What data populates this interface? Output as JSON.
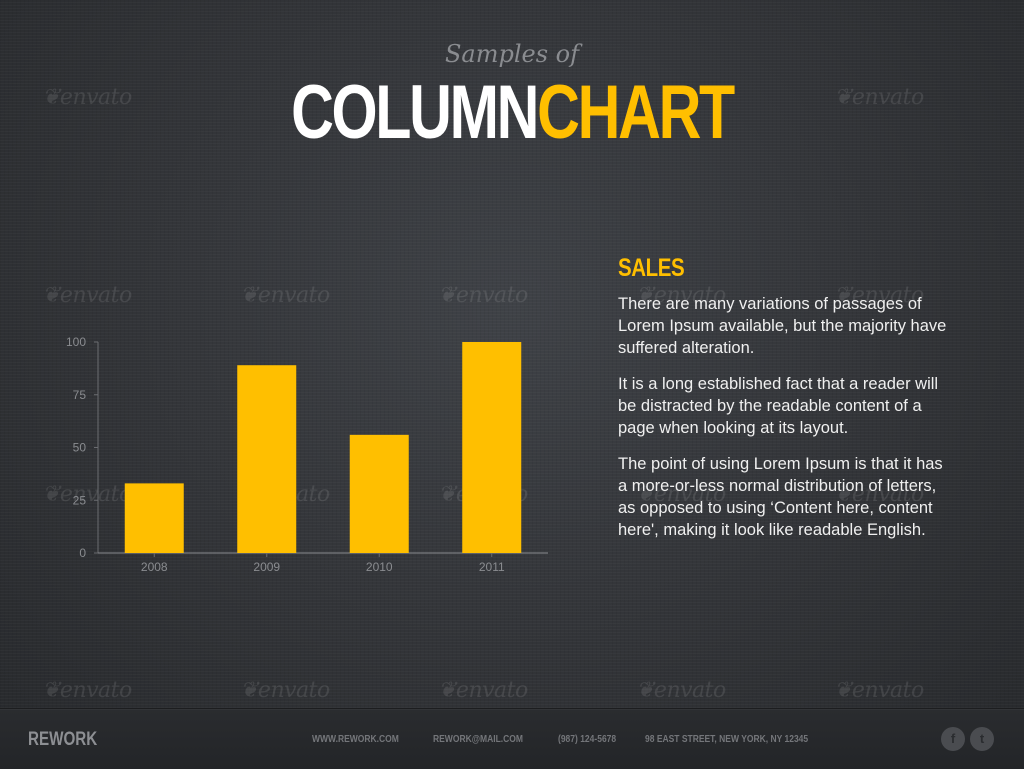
{
  "header": {
    "subtitle": "Samples of",
    "title_part1": "COLUMN",
    "title_part2": "CHART"
  },
  "watermark": {
    "text": "envato"
  },
  "chart_data": {
    "type": "bar",
    "categories": [
      "2008",
      "2009",
      "2010",
      "2011"
    ],
    "values": [
      33,
      89,
      56,
      100
    ],
    "title": "",
    "xlabel": "",
    "ylabel": "",
    "ylim": [
      0,
      100
    ],
    "yticks": [
      0,
      25,
      50,
      75,
      100
    ],
    "grid": false,
    "bar_color": "#ffbf00"
  },
  "section": {
    "heading": "SALES",
    "paragraphs": [
      "There are many variations of passages of Lorem Ipsum available, but the majority have suffered alteration.",
      "It is a long established fact that a reader will be distracted by the readable content of a page when looking at its layout.",
      "The point of using Lorem Ipsum is that it has a more-or-less normal distribution of letters, as opposed to using ‘Content here, content here', making it look like readable English."
    ]
  },
  "footer": {
    "brand": "REWORK",
    "website": "WWW.REWORK.COM",
    "email": "REWORK@MAIL.COM",
    "phone": "(987) 124-5678",
    "address": "98 EAST STREET, NEW YORK, NY 12345",
    "social": [
      {
        "icon": "facebook-icon",
        "glyph": "f"
      },
      {
        "icon": "twitter-icon",
        "glyph": "t"
      }
    ]
  },
  "colors": {
    "accent": "#ffbf00",
    "background": "#34363a",
    "text": "#f0f0f0"
  }
}
